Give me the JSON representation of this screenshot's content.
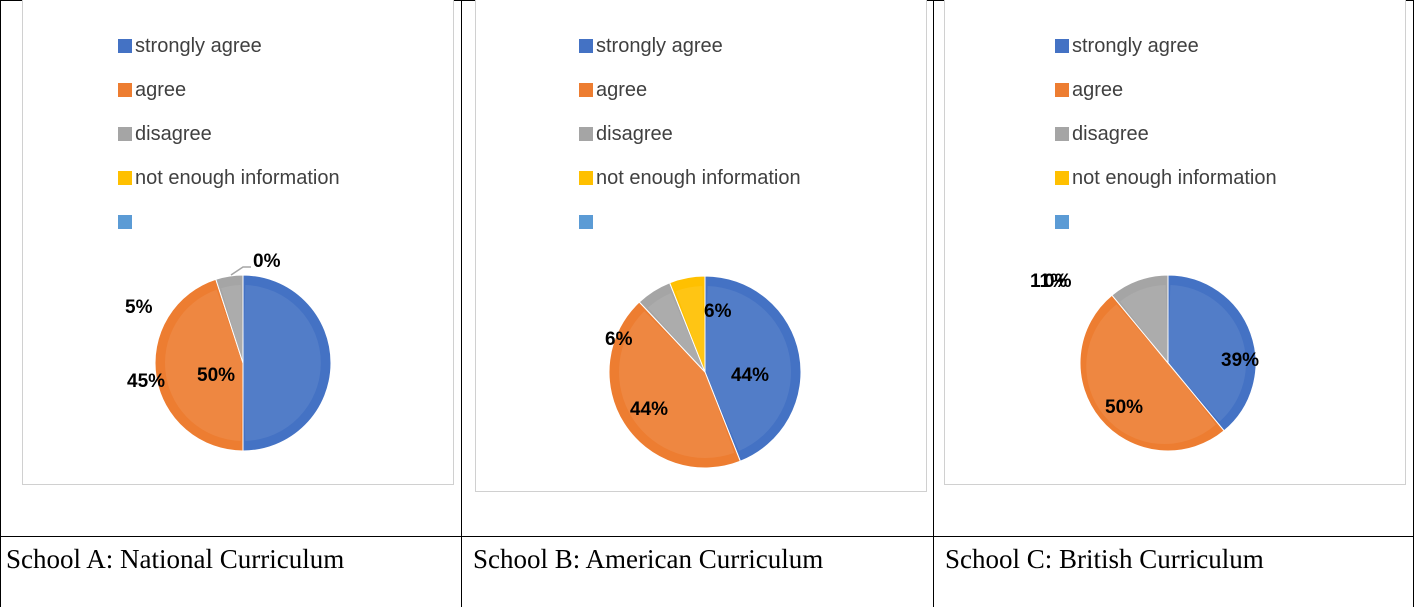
{
  "chart_data": [
    {
      "type": "pie",
      "caption": "School A: National Curriculum",
      "categories": [
        "strongly agree",
        "agree",
        "disagree",
        "not enough information",
        ""
      ],
      "values": [
        50,
        45,
        5,
        0,
        0
      ],
      "labels": [
        "50%",
        "45%",
        "5%",
        "0%",
        ""
      ],
      "colors": [
        "#4472C4",
        "#ED7D31",
        "#A5A5A5",
        "#FFC000",
        "#5B9BD5"
      ],
      "legend": "top"
    },
    {
      "type": "pie",
      "caption": "School B: American Curriculum",
      "categories": [
        "strongly agree",
        "agree",
        "disagree",
        "not enough information",
        ""
      ],
      "values": [
        44,
        44,
        6,
        6,
        0
      ],
      "labels": [
        "44%",
        "44%",
        "6%",
        "6%",
        ""
      ],
      "colors": [
        "#4472C4",
        "#ED7D31",
        "#A5A5A5",
        "#FFC000",
        "#5B9BD5"
      ],
      "legend": "top"
    },
    {
      "type": "pie",
      "caption": "School C: British Curriculum",
      "categories": [
        "strongly agree",
        "agree",
        "disagree",
        "not enough information",
        ""
      ],
      "values": [
        39,
        50,
        11,
        0,
        0
      ],
      "labels": [
        "39%",
        "50%",
        "11%",
        "0%",
        ""
      ],
      "colors": [
        "#4472C4",
        "#ED7D31",
        "#A5A5A5",
        "#FFC000",
        "#5B9BD5"
      ],
      "legend": "top"
    }
  ]
}
